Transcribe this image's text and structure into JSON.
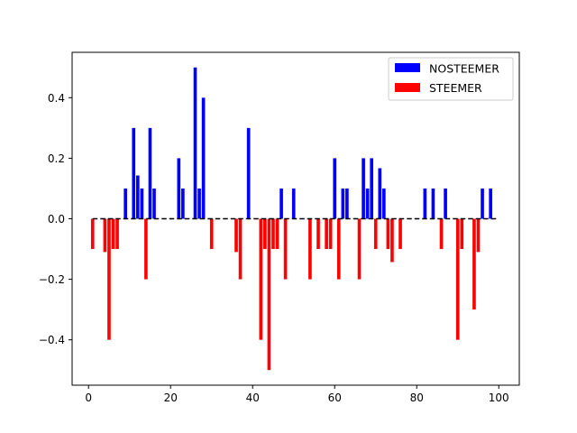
{
  "chart_data": {
    "type": "bar",
    "title": "",
    "xlabel": "",
    "ylabel": "",
    "xlim": [
      -4,
      105
    ],
    "ylim": [
      -0.55,
      0.55
    ],
    "xticks": [
      0,
      20,
      40,
      60,
      80,
      100
    ],
    "yticks": [
      -0.4,
      -0.2,
      0.0,
      0.2,
      0.4
    ],
    "xtick_labels": [
      "0",
      "20",
      "40",
      "60",
      "80",
      "100"
    ],
    "ytick_labels": [
      "−0.4",
      "−0.2",
      "0.0",
      "0.2",
      "0.4"
    ],
    "baseline": {
      "y": 0,
      "x_range": [
        1,
        100
      ],
      "style": "dashed",
      "color": "#000000"
    },
    "legend_position": "upper-right",
    "grid": false,
    "series": [
      {
        "name": "NOSTEEMER",
        "color": "#0000ff",
        "x": [
          9,
          11,
          12,
          13,
          15,
          16,
          22,
          23,
          26,
          27,
          28,
          39,
          47,
          50,
          60,
          62,
          63,
          67,
          68,
          69,
          71,
          72,
          82,
          84,
          87,
          96,
          98
        ],
        "values": [
          0.1,
          0.3,
          0.143,
          0.1,
          0.3,
          0.1,
          0.2,
          0.1,
          0.5,
          0.1,
          0.4,
          0.3,
          0.1,
          0.1,
          0.2,
          0.1,
          0.1,
          0.2,
          0.1,
          0.2,
          0.167,
          0.1,
          0.1,
          0.1,
          0.1,
          0.1,
          0.1
        ]
      },
      {
        "name": "STEEMER",
        "color": "#ff0000",
        "x": [
          1,
          4,
          5,
          6,
          7,
          14,
          30,
          36,
          37,
          42,
          43,
          44,
          45,
          46,
          48,
          54,
          56,
          58,
          59,
          61,
          66,
          70,
          73,
          74,
          76,
          86,
          90,
          91,
          94,
          95
        ],
        "values": [
          -0.1,
          -0.11,
          -0.4,
          -0.1,
          -0.1,
          -0.2,
          -0.1,
          -0.11,
          -0.2,
          -0.4,
          -0.1,
          -0.5,
          -0.1,
          -0.1,
          -0.2,
          -0.2,
          -0.1,
          -0.1,
          -0.1,
          -0.2,
          -0.2,
          -0.1,
          -0.1,
          -0.143,
          -0.1,
          -0.1,
          -0.4,
          -0.1,
          -0.3,
          -0.11
        ]
      }
    ]
  }
}
